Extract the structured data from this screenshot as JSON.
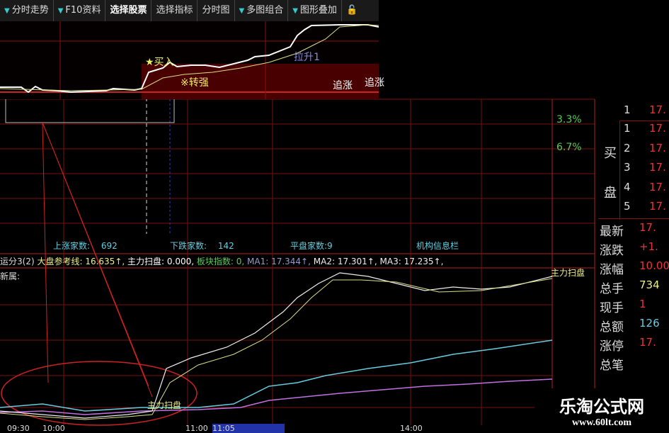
{
  "toolbar": {
    "items": [
      {
        "label": "分时走势",
        "dropdown": true
      },
      {
        "label": "F10资料",
        "dropdown": true
      },
      {
        "label": "选择股票",
        "dropdown": false
      },
      {
        "label": "选择指标",
        "dropdown": false
      },
      {
        "label": "分时图",
        "dropdown": false
      },
      {
        "label": "多图组合",
        "dropdown": true
      },
      {
        "label": "图形叠加",
        "dropdown": true
      }
    ],
    "lock_icon": "lock-icon"
  },
  "inset": {
    "buy_label": "★买入",
    "strong_label": "※转强",
    "lift_label": "拉升1",
    "chase_label": "追涨",
    "chase_label2": "追涨"
  },
  "main": {
    "pct_labels": [
      "3.3%",
      "6.7%"
    ]
  },
  "status": {
    "up_label": "上涨家数:",
    "up_value": "692",
    "down_label": "下跌家数:",
    "down_value": "142",
    "flat_label": "平盘家数:",
    "flat_value": "9",
    "info_label": "机构信息栏"
  },
  "indicator": {
    "name": "运分3(2)",
    "ref_label": "大盘参考线: 16.635↑,",
    "scan_label": "主力扫盘: 0.000,",
    "sector_label": "板块指数: 0,",
    "ma1": "MA1: 17.344↑,",
    "ma2": "MA2: 17.301↑,",
    "ma3": "MA3: 17.235↑,",
    "sub_label": "新属:",
    "right_tag": "主力扫盘",
    "bottom_tag": "主力扫盘"
  },
  "time_axis": [
    "09:30",
    "10:00",
    "11:00",
    "11:05",
    "14:00"
  ],
  "quote": {
    "sell": [
      {
        "n": "1",
        "p": "17."
      }
    ],
    "buy_label_top": "买",
    "buy_label_bottom": "盘",
    "buy": [
      {
        "n": "1",
        "p": "17."
      },
      {
        "n": "2",
        "p": "17."
      },
      {
        "n": "3",
        "p": "17."
      },
      {
        "n": "4",
        "p": "17."
      },
      {
        "n": "5",
        "p": "17."
      }
    ],
    "stats": [
      {
        "k": "最新",
        "v": "17.",
        "color": "#e33"
      },
      {
        "k": "涨跌",
        "v": "+1.",
        "color": "#e33"
      },
      {
        "k": "涨幅",
        "v": "10.00",
        "color": "#e33"
      },
      {
        "k": "总手",
        "v": "734",
        "color": "#ee8"
      },
      {
        "k": "现手",
        "v": "1",
        "color": "#e33"
      },
      {
        "k": "总额",
        "v": "126",
        "color": "#6cd"
      },
      {
        "k": "涨停",
        "v": "17.",
        "color": "#e33"
      },
      {
        "k": "总笔",
        "v": "",
        "color": "#e33"
      }
    ]
  },
  "watermark": {
    "title": "乐淘公式网",
    "url": "www.60lt.com"
  },
  "colors": {
    "grid": "#8a1010",
    "price": "#ffffff",
    "avg": "#e8e090",
    "cyan": "#6cd",
    "purple": "#c070e0",
    "up": "#e33"
  }
}
